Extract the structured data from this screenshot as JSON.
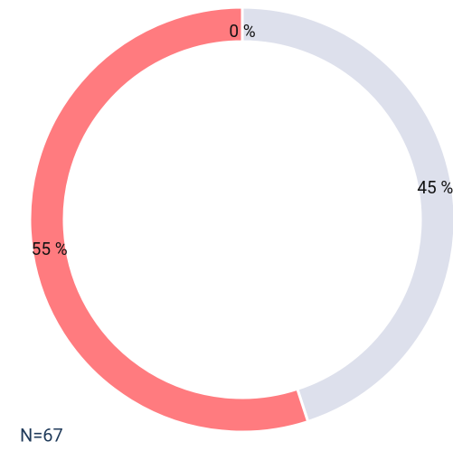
{
  "chart_data": {
    "type": "donut",
    "categories": [
      null,
      null,
      null
    ],
    "values": [
      0,
      45,
      55
    ],
    "value_labels": [
      "0 %",
      "45 %",
      "55 %"
    ],
    "colors": [
      "#8a8fa8",
      "#dde0ec",
      "#ff7b7f"
    ],
    "note": "N=67"
  }
}
